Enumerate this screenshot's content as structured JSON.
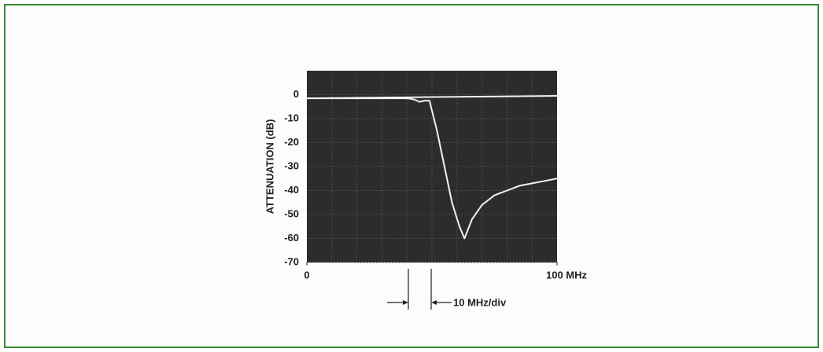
{
  "chart_data": {
    "type": "line",
    "ylabel": "ATTENUATION (dB)",
    "annotation": "10 MHz/div",
    "xlim": [
      0,
      100
    ],
    "xticks": [
      0,
      {
        "value": 100,
        "label": "100 MHz"
      }
    ],
    "ylim": [
      -70,
      10
    ],
    "yticks": [
      0,
      -10,
      -20,
      -30,
      -40,
      -50,
      -60,
      -70
    ],
    "series": [
      {
        "color": "#f2f2f2",
        "x": [
          0,
          50,
          100
        ],
        "values": [
          -1.5,
          -1,
          -0.5
        ]
      },
      {
        "color": "#f2f2f2",
        "x": [
          0,
          10,
          20,
          30,
          40,
          43,
          45,
          47,
          49,
          52,
          55,
          58,
          61,
          63,
          66,
          70,
          75,
          80,
          85,
          90,
          95,
          100
        ],
        "values": [
          -1.5,
          -1.5,
          -1.5,
          -1.5,
          -1.5,
          -2,
          -3,
          -2.5,
          -2.5,
          -15,
          -30,
          -45,
          -55,
          -60,
          -52,
          -46,
          -42,
          -40,
          -38,
          -37,
          -36,
          -35
        ]
      }
    ]
  }
}
